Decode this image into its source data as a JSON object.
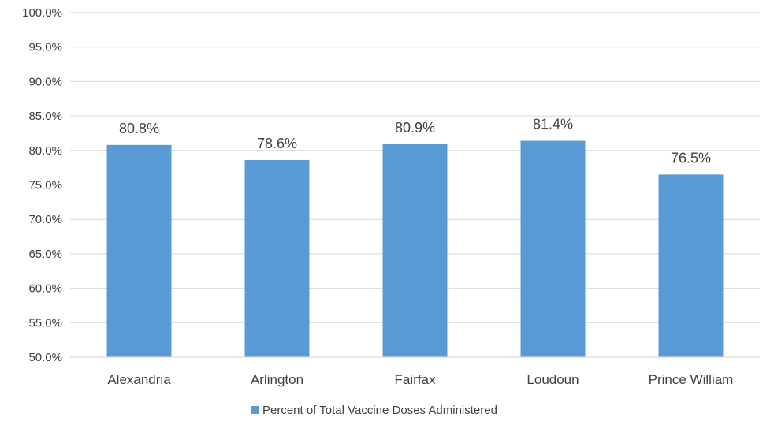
{
  "chart_data": {
    "type": "bar",
    "categories": [
      "Alexandria",
      "Arlington",
      "Fairfax",
      "Loudoun",
      "Prince William"
    ],
    "series": [
      {
        "name": "Percent of Total Vaccine Doses Administered",
        "values": [
          80.8,
          78.6,
          80.9,
          81.4,
          76.5
        ],
        "data_labels": [
          "80.8%",
          "78.6%",
          "80.9%",
          "81.4%",
          "76.5%"
        ],
        "color": "#5B9BD5"
      }
    ],
    "ylim": [
      50,
      100
    ],
    "yticks": [
      50,
      55,
      60,
      65,
      70,
      75,
      80,
      85,
      90,
      95,
      100
    ],
    "ytick_labels": [
      "50.0%",
      "55.0%",
      "60.0%",
      "65.0%",
      "70.0%",
      "75.0%",
      "80.0%",
      "85.0%",
      "90.0%",
      "95.0%",
      "100.0%"
    ],
    "grid": true,
    "gridline_color": "#D9D9D9",
    "legend_position": "bottom"
  }
}
